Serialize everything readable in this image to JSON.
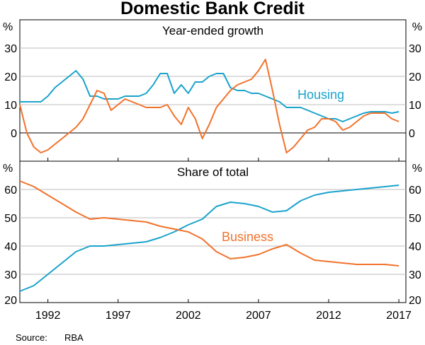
{
  "chart_data": {
    "title": "Domestic Bank Credit",
    "source_label": "Source:",
    "source_value": "RBA",
    "colors": {
      "housing": "#1aa3cc",
      "business": "#f2722c",
      "axis": "#000000",
      "grid": "#bdbdbd"
    },
    "x_ticks": [
      "1992",
      "1997",
      "2002",
      "2007",
      "2012",
      "2017"
    ],
    "x_tick_values": [
      1992,
      1997,
      2002,
      2007,
      2012,
      2017
    ],
    "xlim": [
      1990,
      2017.5
    ],
    "panels": [
      {
        "type": "line",
        "title": "Year-ended growth",
        "unit": "%",
        "ylim": [
          -10,
          40
        ],
        "y_ticks": [
          "30",
          "20",
          "10",
          "0"
        ],
        "y_tick_values": [
          30,
          20,
          10,
          0
        ],
        "zero_line": true,
        "series_label": "Housing",
        "series": [
          {
            "name": "Housing",
            "key": "housing",
            "x": [
              1990,
              1991,
              1991.5,
              1992,
              1992.5,
              1993,
              1993.5,
              1994,
              1994.5,
              1995,
              1995.5,
              1996,
              1996.5,
              1997,
              1997.5,
              1998,
              1998.5,
              1999,
              1999.5,
              2000,
              2000.5,
              2001,
              2001.5,
              2002,
              2002.5,
              2003,
              2003.5,
              2004,
              2004.5,
              2005,
              2005.5,
              2006,
              2006.5,
              2007,
              2007.5,
              2008,
              2008.5,
              2009,
              2009.5,
              2010,
              2010.5,
              2011,
              2011.5,
              2012,
              2012.5,
              2013,
              2013.5,
              2014,
              2014.5,
              2015,
              2015.5,
              2016,
              2016.5,
              2017
            ],
            "y": [
              11,
              11,
              11,
              13,
              16,
              18,
              20,
              22,
              19,
              13,
              13,
              12,
              12,
              12,
              13,
              13,
              13,
              14,
              17,
              21,
              21,
              14,
              17,
              14,
              18,
              18,
              20,
              21,
              21,
              16,
              15,
              15,
              14,
              14,
              13,
              12,
              11,
              9,
              9,
              9,
              8,
              7,
              6,
              5,
              5,
              4,
              5,
              6,
              7,
              7.5,
              7.5,
              7.5,
              7,
              7.5
            ]
          },
          {
            "name": "Business",
            "key": "business",
            "x": [
              1990,
              1990.5,
              1991,
              1991.5,
              1992,
              1992.5,
              1993,
              1993.5,
              1994,
              1994.5,
              1995,
              1995.5,
              1996,
              1996.5,
              1997,
              1997.5,
              1998,
              1998.5,
              1999,
              1999.5,
              2000,
              2000.5,
              2001,
              2001.5,
              2002,
              2002.5,
              2003,
              2003.5,
              2004,
              2004.5,
              2005,
              2005.5,
              2006,
              2006.5,
              2007,
              2007.5,
              2008,
              2008.5,
              2009,
              2009.5,
              2010,
              2010.5,
              2011,
              2011.5,
              2012,
              2012.5,
              2013,
              2013.5,
              2014,
              2014.5,
              2015,
              2015.5,
              2016,
              2016.5,
              2017
            ],
            "y": [
              10,
              0,
              -5,
              -7,
              -6,
              -4,
              -2,
              0,
              2,
              5,
              10,
              15,
              14,
              8,
              10,
              12,
              11,
              10,
              9,
              9,
              9,
              10,
              6,
              3,
              9,
              5,
              -2,
              3,
              9,
              12,
              15,
              17,
              18,
              19,
              22,
              26,
              15,
              3,
              -7,
              -5,
              -2,
              1,
              2,
              5,
              5,
              4,
              1,
              2,
              4,
              6,
              7,
              7,
              7,
              5,
              4
            ]
          }
        ]
      },
      {
        "type": "line",
        "title": "Share of total",
        "unit": "%",
        "ylim": [
          20,
          70
        ],
        "y_ticks": [
          "60",
          "50",
          "40",
          "30",
          "20"
        ],
        "y_tick_values": [
          60,
          50,
          40,
          30,
          20
        ],
        "zero_line": false,
        "series_label": "Business",
        "series": [
          {
            "name": "Housing",
            "key": "housing",
            "x": [
              1990,
              1991,
              1992,
              1993,
              1994,
              1995,
              1996,
              1997,
              1998,
              1999,
              2000,
              2001,
              2002,
              2003,
              2004,
              2005,
              2006,
              2007,
              2008,
              2009,
              2010,
              2011,
              2012,
              2013,
              2014,
              2015,
              2016,
              2017
            ],
            "y": [
              24,
              26,
              30,
              34,
              38,
              40,
              40,
              40.5,
              41,
              41.5,
              43,
              45,
              47.5,
              49.5,
              54,
              55.5,
              55,
              54,
              52,
              52.5,
              56,
              58,
              59,
              59.5,
              60,
              60.5,
              61,
              61.5
            ]
          },
          {
            "name": "Business",
            "key": "business",
            "x": [
              1990,
              1991,
              1992,
              1993,
              1994,
              1995,
              1996,
              1997,
              1998,
              1999,
              2000,
              2001,
              2002,
              2003,
              2004,
              2005,
              2006,
              2007,
              2008,
              2009,
              2010,
              2011,
              2012,
              2013,
              2014,
              2015,
              2016,
              2017
            ],
            "y": [
              63,
              61,
              58,
              55,
              52,
              49.5,
              50,
              49.5,
              49,
              48.5,
              47,
              46,
              45,
              42.5,
              38,
              35.5,
              36,
              37,
              39,
              40.5,
              37.5,
              35,
              34.5,
              34,
              33.5,
              33.5,
              33.5,
              33
            ]
          }
        ]
      }
    ]
  }
}
